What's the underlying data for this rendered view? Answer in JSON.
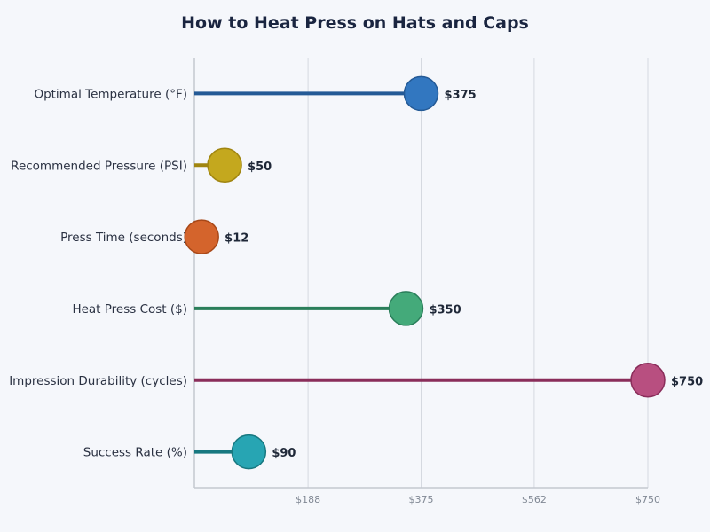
{
  "chart_data": {
    "type": "lollipop",
    "title": "How to Heat Press on Hats and Caps",
    "categories": [
      "Optimal Temperature (°F)",
      "Recommended Pressure (PSI)",
      "Press Time (seconds)",
      "Heat Press Cost ($)",
      "Impression Durability (cycles)",
      "Success Rate (%)"
    ],
    "values": [
      375,
      50,
      12,
      350,
      750,
      90
    ],
    "data_labels": [
      "$375",
      "$50",
      "$12",
      "$350",
      "$750",
      "$90"
    ],
    "colors": [
      "#3277c0",
      "#c4a81e",
      "#d4642c",
      "#44aa7a",
      "#b84f80",
      "#27a5b3"
    ],
    "stem_colors": [
      "#245a96",
      "#a08510",
      "#a84818",
      "#2a7e5a",
      "#8a2d5a",
      "#177880"
    ],
    "xlim": [
      0,
      750
    ],
    "xticks": [
      188,
      375,
      562,
      750
    ],
    "xtick_labels": [
      "$188",
      "$375",
      "$562",
      "$750"
    ],
    "grid": true,
    "xlabel": "",
    "ylabel": ""
  }
}
